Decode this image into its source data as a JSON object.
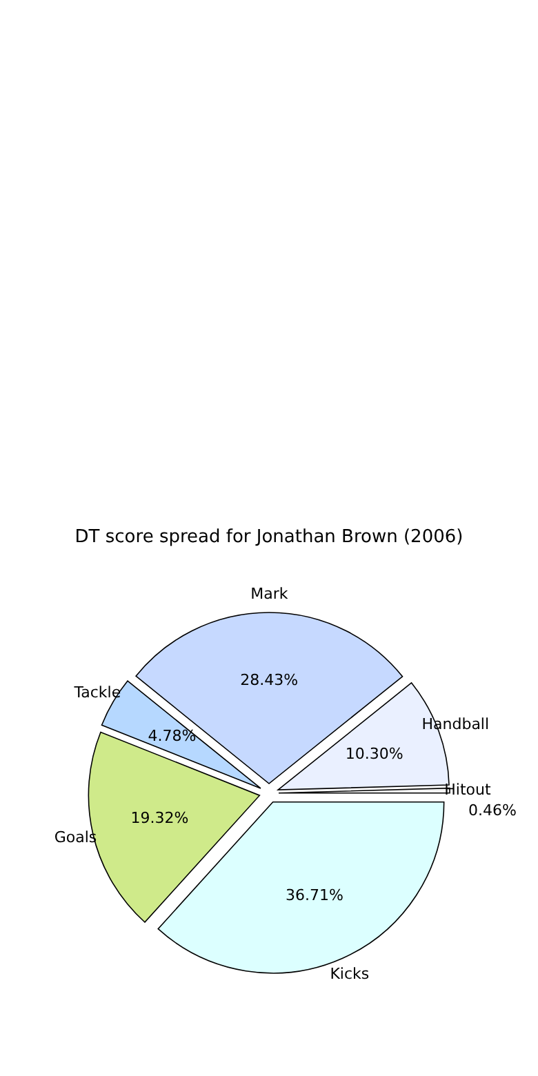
{
  "chart_data": {
    "type": "pie",
    "title": "DT score spread for Jonathan Brown (2006)",
    "categories": [
      "Hitout",
      "Handball",
      "Mark",
      "Tackle",
      "Goals",
      "Kicks"
    ],
    "values": [
      0.46,
      10.3,
      28.43,
      4.78,
      19.32,
      36.71
    ],
    "value_labels": [
      "0.46%",
      "10.30%",
      "28.43%",
      "4.78%",
      "19.32%",
      "36.71%"
    ],
    "colors": [
      "#f4f4f4",
      "#eaf0ff",
      "#c6d9ff",
      "#b6d8ff",
      "#cfea8a",
      "#dcffff"
    ]
  }
}
